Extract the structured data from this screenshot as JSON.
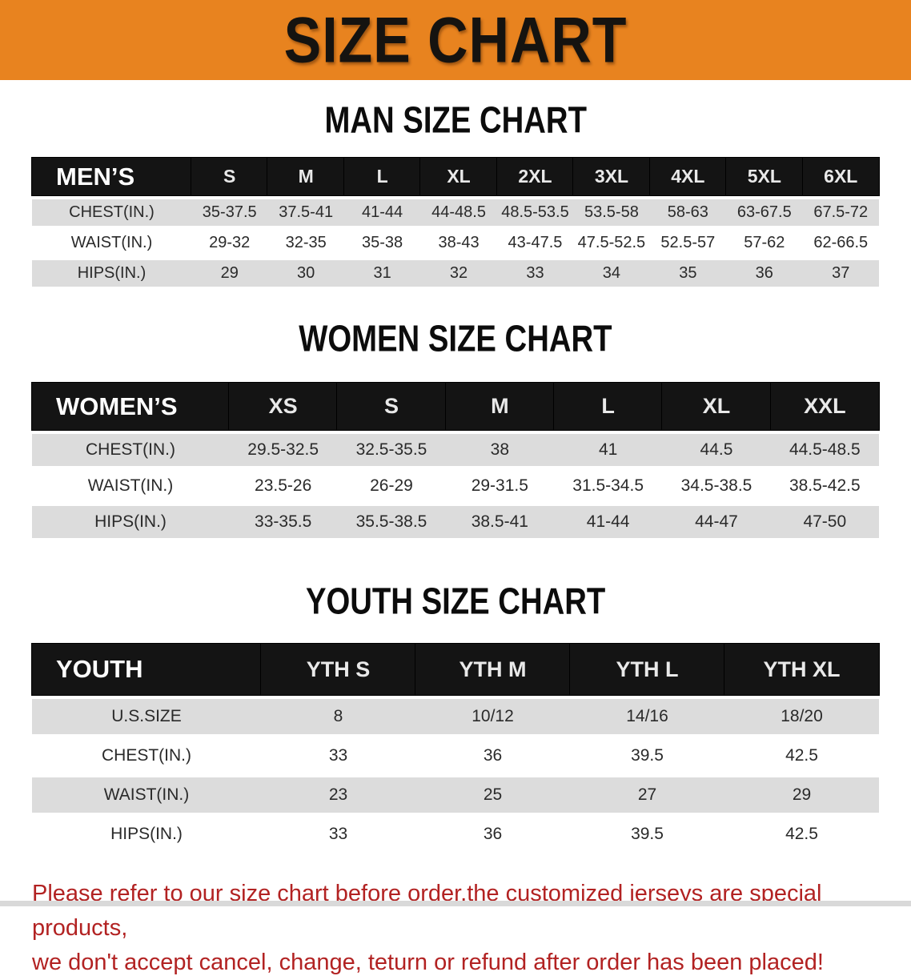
{
  "colors": {
    "banner_orange": "#E8831F",
    "header_black": "#141414",
    "row_gray": "#DCDCDC",
    "note_red": "#B22222"
  },
  "banner": {
    "title": "SIZE CHART"
  },
  "sections": {
    "men": {
      "heading": "MAN SIZE CHART",
      "table": {
        "header": [
          "MEN’S",
          "S",
          "M",
          "L",
          "XL",
          "2XL",
          "3XL",
          "4XL",
          "5XL",
          "6XL"
        ],
        "rows": [
          [
            "CHEST(IN.)",
            "35-37.5",
            "37.5-41",
            "41-44",
            "44-48.5",
            "48.5-53.5",
            "53.5-58",
            "58-63",
            "63-67.5",
            "67.5-72"
          ],
          [
            "WAIST(IN.)",
            "29-32",
            "32-35",
            "35-38",
            "38-43",
            "43-47.5",
            "47.5-52.5",
            "52.5-57",
            "57-62",
            "62-66.5"
          ],
          [
            "HIPS(IN.)",
            "29",
            "30",
            "31",
            "32",
            "33",
            "34",
            "35",
            "36",
            "37"
          ]
        ]
      }
    },
    "women": {
      "heading": "WOMEN SIZE CHART",
      "table": {
        "header": [
          "WOMEN’S",
          "XS",
          "S",
          "M",
          "L",
          "XL",
          "XXL"
        ],
        "rows": [
          [
            "CHEST(IN.)",
            "29.5-32.5",
            "32.5-35.5",
            "38",
            "41",
            "44.5",
            "44.5-48.5"
          ],
          [
            "WAIST(IN.)",
            "23.5-26",
            "26-29",
            "29-31.5",
            "31.5-34.5",
            "34.5-38.5",
            "38.5-42.5"
          ],
          [
            "HIPS(IN.)",
            "33-35.5",
            "35.5-38.5",
            "38.5-41",
            "41-44",
            "44-47",
            "47-50"
          ]
        ]
      }
    },
    "youth": {
      "heading": "YOUTH SIZE CHART",
      "table": {
        "header": [
          "YOUTH",
          "YTH S",
          "YTH M",
          "YTH L",
          "YTH XL"
        ],
        "rows": [
          [
            "U.S.SIZE",
            "8",
            "10/12",
            "14/16",
            "18/20"
          ],
          [
            "CHEST(IN.)",
            "33",
            "36",
            "39.5",
            "42.5"
          ],
          [
            "WAIST(IN.)",
            "23",
            "25",
            "27",
            "29"
          ],
          [
            "HIPS(IN.)",
            "33",
            "36",
            "39.5",
            "42.5"
          ]
        ]
      }
    }
  },
  "footnote": {
    "line1": "Please refer to our size chart before order,the customized jerseys are special products,",
    "line2": "we don't accept cancel, change, teturn or refund after order has been placed!"
  }
}
